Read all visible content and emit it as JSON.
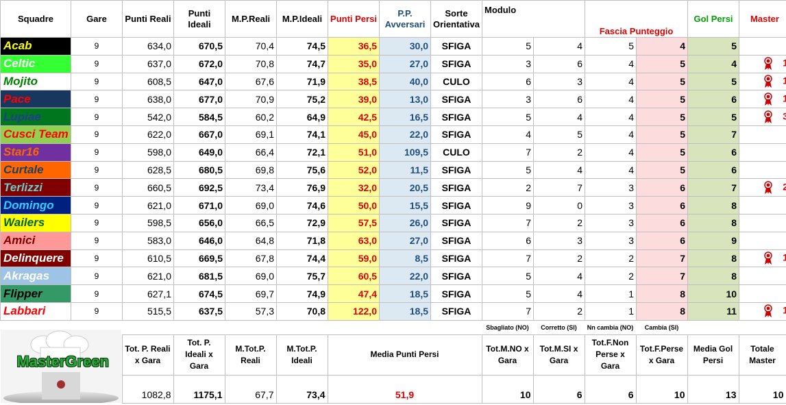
{
  "headers": {
    "squadre": "Squadre",
    "gare": "Gare",
    "punti_reali": "Punti Reali",
    "punti_ideali": "Punti Ideali",
    "mp_reali": "M.P.Reali",
    "mp_ideali": "M.P.Ideali",
    "punti_persi": "Punti Persi",
    "pp_avversari": "P.P. Avversari",
    "sorte": "Sorte Orientativa",
    "modulo": "Modulo",
    "fascia": "Fascia Punteggio",
    "gol_persi": "Gol Persi",
    "master": "Master"
  },
  "colors": {
    "red": "#e00000",
    "blue": "#1f4e79"
  },
  "rows": [
    {
      "name": "Acab",
      "bg": "#000000",
      "fg": "#ffff00",
      "gare": "9",
      "pr": "634,0",
      "pi": "670,5",
      "mpr": "70,4",
      "mpi": "74,5",
      "pp": "36,5",
      "ppa": "30,0",
      "sorte": "SFIGA",
      "m1": "5",
      "m2": "4",
      "m3": "5",
      "fascia": "4",
      "gol": "5",
      "master": ""
    },
    {
      "name": "Celtic",
      "bg": "#33ff33",
      "fg": "#ffffff",
      "gare": "9",
      "pr": "637,0",
      "pi": "672,0",
      "mpr": "70,8",
      "mpi": "74,7",
      "pp": "35,0",
      "ppa": "27,0",
      "sorte": "SFIGA",
      "m1": "3",
      "m2": "6",
      "m3": "4",
      "fascia": "5",
      "gol": "4",
      "master": "1"
    },
    {
      "name": "Mojito",
      "bg": "#ffffff",
      "fg": "#008000",
      "gare": "9",
      "pr": "608,5",
      "pi": "647,0",
      "mpr": "67,6",
      "mpi": "71,9",
      "pp": "38,5",
      "ppa": "40,0",
      "sorte": "CULO",
      "m1": "6",
      "m2": "3",
      "m3": "4",
      "fascia": "5",
      "gol": "5",
      "master": "1"
    },
    {
      "name": "Pace",
      "bg": "#17375e",
      "fg": "#ff0000",
      "gare": "9",
      "pr": "638,0",
      "pi": "677,0",
      "mpr": "70,9",
      "mpi": "75,2",
      "pp": "39,0",
      "ppa": "13,0",
      "sorte": "SFIGA",
      "m1": "3",
      "m2": "6",
      "m3": "4",
      "fascia": "5",
      "gol": "6",
      "master": "1"
    },
    {
      "name": "Lupiae",
      "bg": "#00761e",
      "fg": "#1f3f8f",
      "gare": "9",
      "pr": "542,0",
      "pi": "584,5",
      "mpr": "60,2",
      "mpi": "64,9",
      "pp": "42,5",
      "ppa": "16,5",
      "sorte": "SFIGA",
      "m1": "5",
      "m2": "4",
      "m3": "4",
      "fascia": "5",
      "gol": "5",
      "master": "3"
    },
    {
      "name": "Cusci Team",
      "bg": "#92d050",
      "fg": "#ff0000",
      "gare": "9",
      "pr": "622,0",
      "pi": "667,0",
      "mpr": "69,1",
      "mpi": "74,1",
      "pp": "45,0",
      "ppa": "22,0",
      "sorte": "SFIGA",
      "m1": "4",
      "m2": "5",
      "m3": "4",
      "fascia": "5",
      "gol": "7",
      "master": ""
    },
    {
      "name": "Star16",
      "bg": "#7030a0",
      "fg": "#ff6600",
      "gare": "9",
      "pr": "598,0",
      "pi": "649,0",
      "mpr": "66,4",
      "mpi": "72,1",
      "pp": "51,0",
      "ppa": "109,5",
      "sorte": "CULO",
      "m1": "7",
      "m2": "2",
      "m3": "4",
      "fascia": "5",
      "gol": "6",
      "master": ""
    },
    {
      "name": "Curtale",
      "bg": "#ff6600",
      "fg": "#1f3f5f",
      "gare": "9",
      "pr": "628,5",
      "pi": "680,5",
      "mpr": "69,8",
      "mpi": "75,6",
      "pp": "52,0",
      "ppa": "11,5",
      "sorte": "SFIGA",
      "m1": "5",
      "m2": "4",
      "m3": "4",
      "fascia": "5",
      "gol": "6",
      "master": ""
    },
    {
      "name": "Terlizzi",
      "bg": "#800000",
      "fg": "#66cccc",
      "gare": "9",
      "pr": "660,5",
      "pi": "692,5",
      "mpr": "73,4",
      "mpi": "76,9",
      "pp": "32,0",
      "ppa": "20,5",
      "sorte": "SFIGA",
      "m1": "2",
      "m2": "7",
      "m3": "3",
      "fascia": "6",
      "gol": "7",
      "master": "2"
    },
    {
      "name": "Domingo",
      "bg": "#002080",
      "fg": "#33ccff",
      "gare": "9",
      "pr": "621,0",
      "pi": "671,0",
      "mpr": "69,0",
      "mpi": "74,6",
      "pp": "50,0",
      "ppa": "15,5",
      "sorte": "SFIGA",
      "m1": "9",
      "m2": "0",
      "m3": "3",
      "fascia": "6",
      "gol": "8",
      "master": ""
    },
    {
      "name": "Wailers",
      "bg": "#ffff00",
      "fg": "#006400",
      "gare": "9",
      "pr": "598,5",
      "pi": "656,0",
      "mpr": "66,5",
      "mpi": "72,9",
      "pp": "57,5",
      "ppa": "26,0",
      "sorte": "SFIGA",
      "m1": "7",
      "m2": "2",
      "m3": "3",
      "fascia": "6",
      "gol": "8",
      "master": ""
    },
    {
      "name": "Amici",
      "bg": "#ff9999",
      "fg": "#800000",
      "gare": "9",
      "pr": "583,0",
      "pi": "646,0",
      "mpr": "64,8",
      "mpi": "71,8",
      "pp": "63,0",
      "ppa": "27,0",
      "sorte": "SFIGA",
      "m1": "6",
      "m2": "3",
      "m3": "3",
      "fascia": "6",
      "gol": "9",
      "master": ""
    },
    {
      "name": "Delinquere",
      "bg": "#800000",
      "fg": "#ffffff",
      "gare": "9",
      "pr": "610,5",
      "pi": "669,5",
      "mpr": "67,8",
      "mpi": "74,4",
      "pp": "59,0",
      "ppa": "8,5",
      "sorte": "SFIGA",
      "m1": "7",
      "m2": "2",
      "m3": "2",
      "fascia": "7",
      "gol": "8",
      "master": "1"
    },
    {
      "name": "Akragas",
      "bg": "#9dc3e6",
      "fg": "#ffffff",
      "gare": "9",
      "pr": "621,0",
      "pi": "681,5",
      "mpr": "69,0",
      "mpi": "75,7",
      "pp": "60,5",
      "ppa": "22,0",
      "sorte": "SFIGA",
      "m1": "5",
      "m2": "4",
      "m3": "2",
      "fascia": "7",
      "gol": "8",
      "master": ""
    },
    {
      "name": "Flipper",
      "bg": "#339966",
      "fg": "#000000",
      "gare": "9",
      "pr": "627,1",
      "pi": "674,5",
      "mpr": "69,7",
      "mpi": "74,9",
      "pp": "47,4",
      "ppa": "18,5",
      "sorte": "SFIGA",
      "m1": "5",
      "m2": "4",
      "m3": "1",
      "fascia": "8",
      "gol": "10",
      "master": ""
    },
    {
      "name": "Labbari",
      "bg": "#ffffff",
      "fg": "#ff0000",
      "gare": "9",
      "pr": "515,5",
      "pi": "637,5",
      "mpr": "57,3",
      "mpi": "70,8",
      "pp": "122,0",
      "ppa": "18,5",
      "sorte": "SFIGA",
      "m1": "7",
      "m2": "2",
      "m3": "1",
      "fascia": "8",
      "gol": "11",
      "master": "1"
    }
  ],
  "sub_headers": {
    "sbagliato": "Sbagliato (NO)",
    "corretto": "Corretto (SI)",
    "nn_cambia": "Nn cambia (NO)",
    "cambia": "Cambia (SI)"
  },
  "logo": {
    "text": "MasterGreen"
  },
  "totals_labels": {
    "tot_pr": "Tot. P. Reali x Gara",
    "tot_pi": "Tot. P. Ideali x Gara",
    "mtot_pr": "M.Tot.P. Reali",
    "mtot_pi": "M.Tot.P. Ideali",
    "media_pp": "Media Punti Persi",
    "tot_mno": "Tot.M.NO x Gara",
    "tot_msi": "Tot.M.SI x Gara",
    "tot_fnon": "Tot.F.Non Perse x Gara",
    "tot_fperse": "Tot.F.Perse x Gara",
    "media_gol": "Media Gol Persi",
    "totale_master": "Totale Master"
  },
  "totals_values": {
    "tot_pr": "1082,8",
    "tot_pi": "1175,1",
    "mtot_pr": "67,7",
    "mtot_pi": "73,4",
    "media_pp": "51,9",
    "tot_mno": "10",
    "tot_msi": "6",
    "tot_fnon": "6",
    "tot_fperse": "10",
    "media_gol": "13",
    "totale_master": "10"
  }
}
